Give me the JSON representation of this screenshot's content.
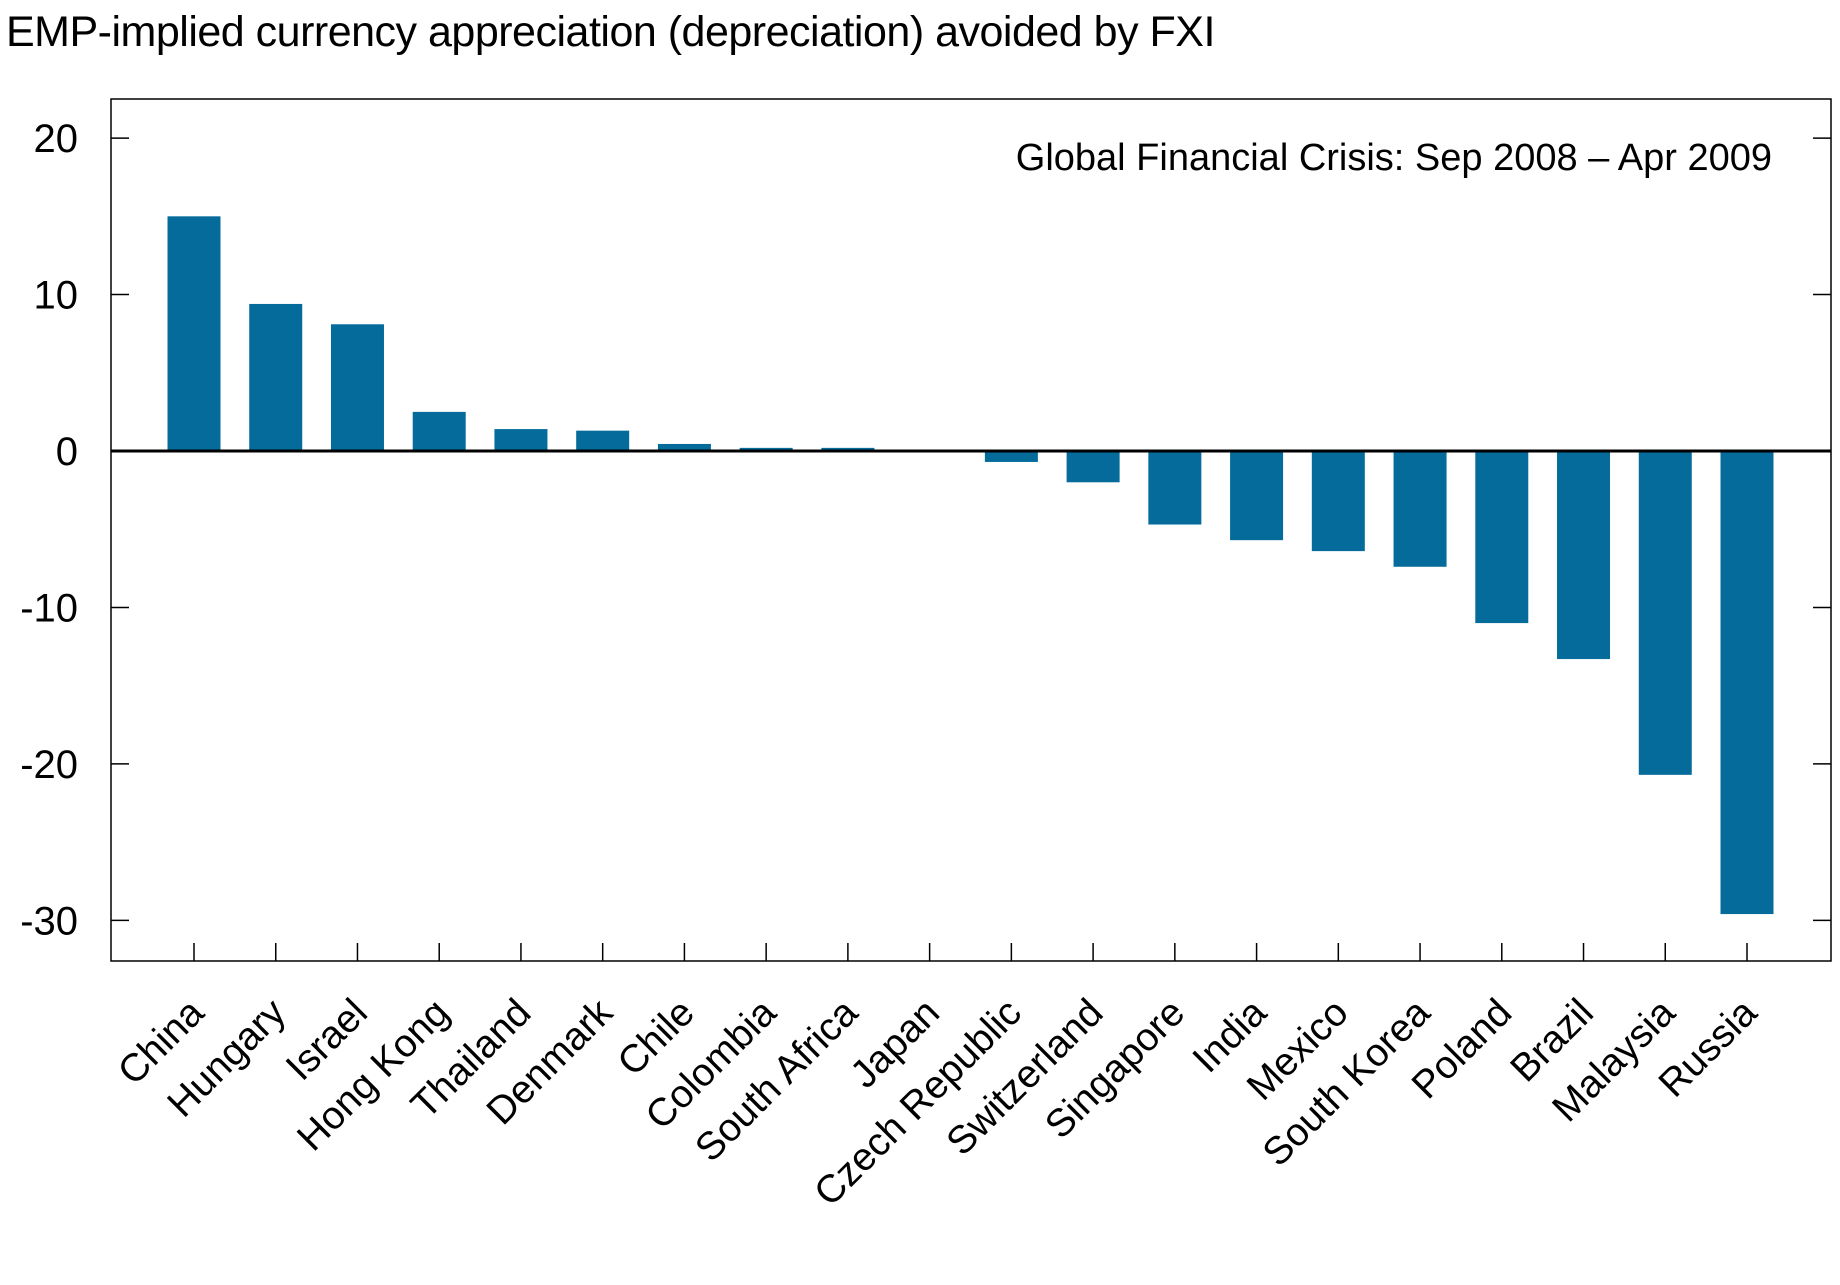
{
  "chart_data": {
    "type": "bar",
    "title": "EMP-implied currency appreciation (depreciation) avoided by FXI",
    "annotation": "Global Financial Crisis: Sep 2008 – Apr 2009",
    "xlabel": "",
    "ylabel": "",
    "categories": [
      "China",
      "Hungary",
      "Israel",
      "Hong Kong",
      "Thailand",
      "Denmark",
      "Chile",
      "Colombia",
      "South Africa",
      "Japan",
      "Czech Republic",
      "Switzerland",
      "Singapore",
      "India",
      "Mexico",
      "South Korea",
      "Poland",
      "Brazil",
      "Malaysia",
      "Russia"
    ],
    "values": [
      15.0,
      9.4,
      8.1,
      2.5,
      1.4,
      1.3,
      0.45,
      0.2,
      0.2,
      0.0,
      -0.7,
      -2.0,
      -4.7,
      -5.7,
      -6.4,
      -7.4,
      -11.0,
      -13.3,
      -20.7,
      -29.6
    ],
    "ylim": [
      -32.6,
      22.5
    ],
    "yticks": [
      20,
      10,
      0,
      -10,
      -20,
      -30
    ],
    "grid": false,
    "legend": "none",
    "bar_color": "#046b9b"
  }
}
